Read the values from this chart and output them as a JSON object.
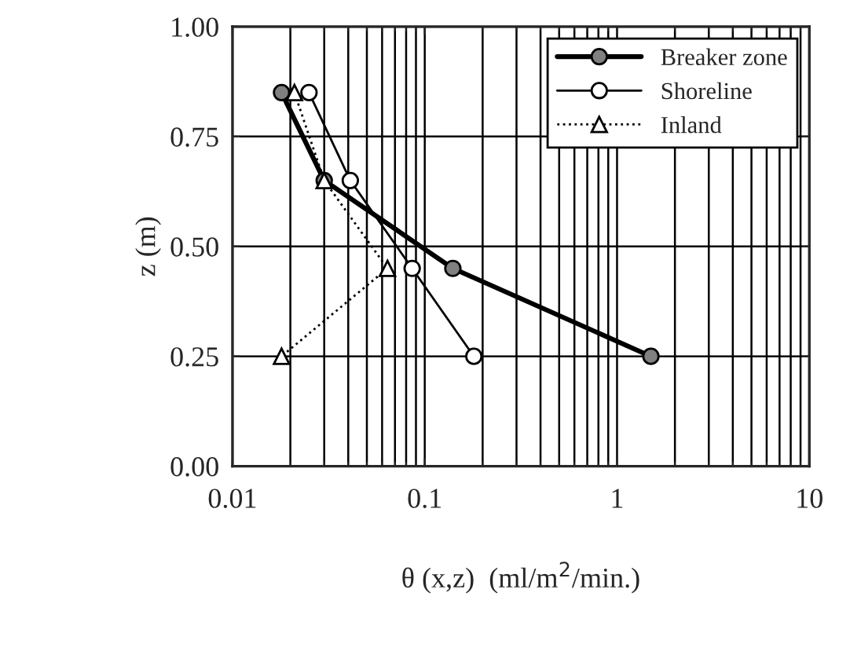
{
  "chart_data": {
    "type": "line",
    "xlabel": "θ (x,z)  (ml/m$^{2}$/min.)",
    "ylabel": "z (m)",
    "log": "x",
    "xlim": [
      0.01,
      10
    ],
    "xticks": [
      0.01,
      0.1,
      1,
      10
    ],
    "ylim": [
      0,
      1
    ],
    "yticks": [
      {
        "value": 0,
        "label": "0.00"
      },
      {
        "value": 0.25,
        "label": "0.25"
      },
      {
        "value": 0.5,
        "label": "0.50"
      },
      {
        "value": 0.75,
        "label": "0.75"
      },
      {
        "value": 1,
        "label": "1.00"
      }
    ],
    "grid": true,
    "legend": "top right",
    "series": [
      {
        "name": "Breaker zone",
        "color": "#808080",
        "marker": "circle",
        "line_style": "solid",
        "x": [
          0.018,
          0.03,
          0.14,
          1.5
        ],
        "values": [
          0.85,
          0.65,
          0.45,
          0.25
        ]
      },
      {
        "name": "Shoreline",
        "color": "#ffffff",
        "marker": "circle",
        "line_style": "solid",
        "x": [
          0.025,
          0.041,
          0.086,
          0.18
        ],
        "values": [
          0.85,
          0.65,
          0.45,
          0.25
        ]
      },
      {
        "name": "Inland",
        "color": "#ffffff",
        "marker": "triangle",
        "line_style": "dotted",
        "x": [
          0.021,
          0.03,
          0.064,
          0.018
        ],
        "values": [
          0.85,
          0.65,
          0.45,
          0.25
        ]
      }
    ]
  }
}
